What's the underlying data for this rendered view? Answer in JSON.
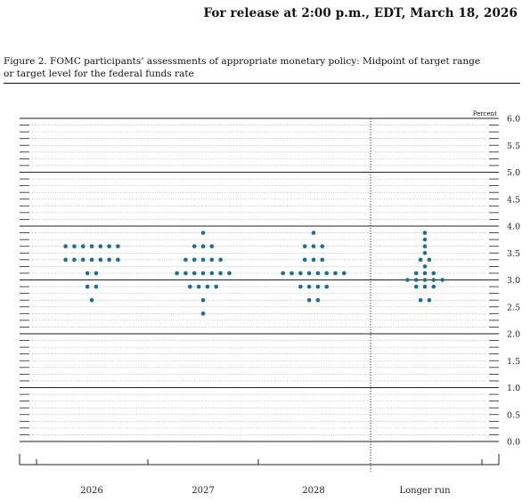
{
  "header": {
    "release_text": "For release at 2:00 p.m., EDT, March 18, 2026"
  },
  "figure": {
    "title_line1": "Figure 2. FOMC participants’ assessments of appropriate monetary policy: Midpoint of target range",
    "title_line2": "or target level for the federal funds rate"
  },
  "chart_data": {
    "type": "scatter",
    "ylabel": "Percent",
    "ylim": [
      0,
      6
    ],
    "ytick_step": 0.125,
    "ytick_labels": [
      "6.0",
      "5.5",
      "5.0",
      "4.5",
      "4.0",
      "3.5",
      "3.0",
      "2.5",
      "2.0",
      "1.5",
      "1.0",
      "0.5",
      "0.0"
    ],
    "categories": [
      "2026",
      "2027",
      "2028",
      "Longer run"
    ],
    "dot_color": "#1f6e94",
    "series": [
      {
        "dots": [
          {
            "y": 3.625,
            "count": 7
          },
          {
            "y": 3.375,
            "count": 7
          },
          {
            "y": 3.125,
            "count": 2
          },
          {
            "y": 2.875,
            "count": 2
          },
          {
            "y": 2.625,
            "count": 1
          }
        ]
      },
      {
        "dots": [
          {
            "y": 3.875,
            "count": 1
          },
          {
            "y": 3.625,
            "count": 3
          },
          {
            "y": 3.375,
            "count": 5
          },
          {
            "y": 3.125,
            "count": 7
          },
          {
            "y": 2.875,
            "count": 4
          },
          {
            "y": 2.625,
            "count": 1
          },
          {
            "y": 2.375,
            "count": 1
          }
        ]
      },
      {
        "dots": [
          {
            "y": 3.875,
            "count": 1
          },
          {
            "y": 3.625,
            "count": 3
          },
          {
            "y": 3.375,
            "count": 3
          },
          {
            "y": 3.125,
            "count": 8
          },
          {
            "y": 2.875,
            "count": 4
          },
          {
            "y": 2.625,
            "count": 2
          }
        ]
      },
      {
        "dots": [
          {
            "y": 3.875,
            "count": 1
          },
          {
            "y": 3.75,
            "count": 1
          },
          {
            "y": 3.625,
            "count": 1
          },
          {
            "y": 3.5,
            "count": 1
          },
          {
            "y": 3.375,
            "count": 2
          },
          {
            "y": 3.25,
            "count": 1
          },
          {
            "y": 3.125,
            "count": 3
          },
          {
            "y": 3.0,
            "count": 5
          },
          {
            "y": 2.875,
            "count": 3
          },
          {
            "y": 2.625,
            "count": 2
          }
        ]
      }
    ]
  }
}
